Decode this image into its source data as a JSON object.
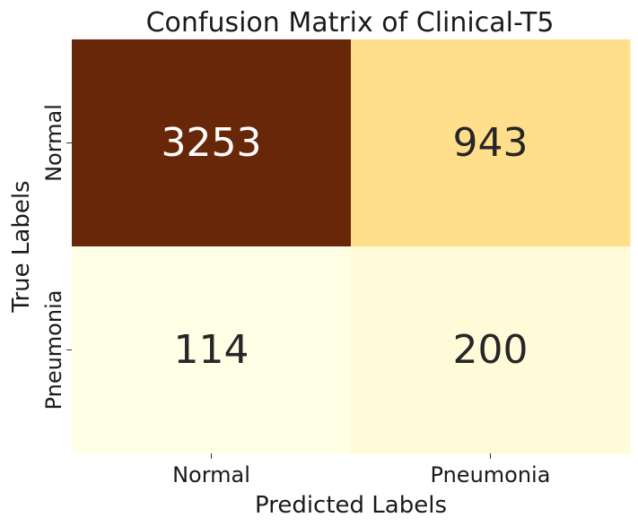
{
  "chart_data": {
    "type": "heatmap",
    "title": "Confusion Matrix of Clinical-T5",
    "xlabel": "Predicted Labels",
    "ylabel": "True Labels",
    "x_categories": [
      "Normal",
      "Pneumonia"
    ],
    "y_categories": [
      "Normal",
      "Pneumonia"
    ],
    "values": [
      [
        3253,
        943
      ],
      [
        114,
        200
      ]
    ],
    "colormap": "YlOrBr",
    "cell_colors": [
      [
        "#692709",
        "#ffdf8b"
      ],
      [
        "#ffffe5",
        "#fffbd8"
      ]
    ],
    "text_colors": [
      [
        "#ffffff",
        "#262626"
      ],
      [
        "#262626",
        "#262626"
      ]
    ],
    "colorbar": false,
    "grid": false
  }
}
